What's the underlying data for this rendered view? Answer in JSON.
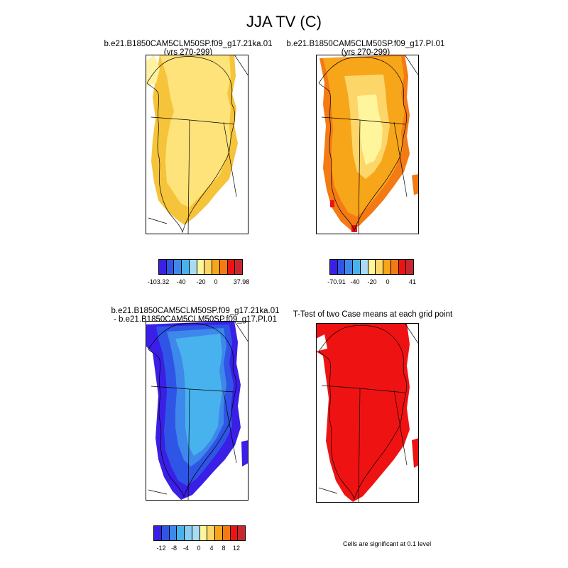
{
  "figure": {
    "title": "JJA TV (C)",
    "panels": [
      {
        "id": "ka",
        "title_line1": "b.e21.B1850CAM5CLM50SP.f09_g17.21ka.01",
        "title_line2": "(yrs 270-299)",
        "colorbar": {
          "colors": [
            "#3a1fe6",
            "#2f55e6",
            "#3d88ea",
            "#48b2ef",
            "#a9dcf3",
            "#fff59c",
            "#fdd66a",
            "#f7a519",
            "#f47a14",
            "#ef1212",
            "#c8282d"
          ],
          "labels": [
            "-103.32",
            "-40",
            "-20",
            "0",
            "37.98"
          ]
        }
      },
      {
        "id": "pi",
        "title_line1": "b.e21.B1850CAM5CLM50SP.f09_g17.PI.01",
        "title_line2": "(yrs 270-299)",
        "colorbar": {
          "colors": [
            "#3a1fe6",
            "#2f55e6",
            "#3d88ea",
            "#48b2ef",
            "#a9dcf3",
            "#fff59c",
            "#fdd66a",
            "#f7a519",
            "#f47a14",
            "#ef1212",
            "#c8282d"
          ],
          "labels": [
            "-70.91",
            "-40",
            "-20",
            "0",
            "41"
          ]
        }
      },
      {
        "id": "diff",
        "title_line1": "b.e21.B1850CAM5CLM50SP.f09_g17.21ka.01",
        "title_line2": "- b.e21.B1850CAM5CLM50SP.f09_g17.PI.01",
        "colorbar": {
          "colors": [
            "#3a1fe6",
            "#2f55e6",
            "#3d88ea",
            "#48b2ef",
            "#89cdf1",
            "#a9dcf3",
            "#fff59c",
            "#fdd66a",
            "#f7a519",
            "#f47a14",
            "#ef1212",
            "#c8282d"
          ],
          "labels": [
            "-12",
            "-8",
            "-4",
            "0",
            "4",
            "8",
            "12"
          ]
        }
      },
      {
        "id": "ttest",
        "title_line1": "T-Test of two Case means at each grid point",
        "title_line2": "",
        "note": "Cells are significant at 0.1 level"
      }
    ]
  }
}
